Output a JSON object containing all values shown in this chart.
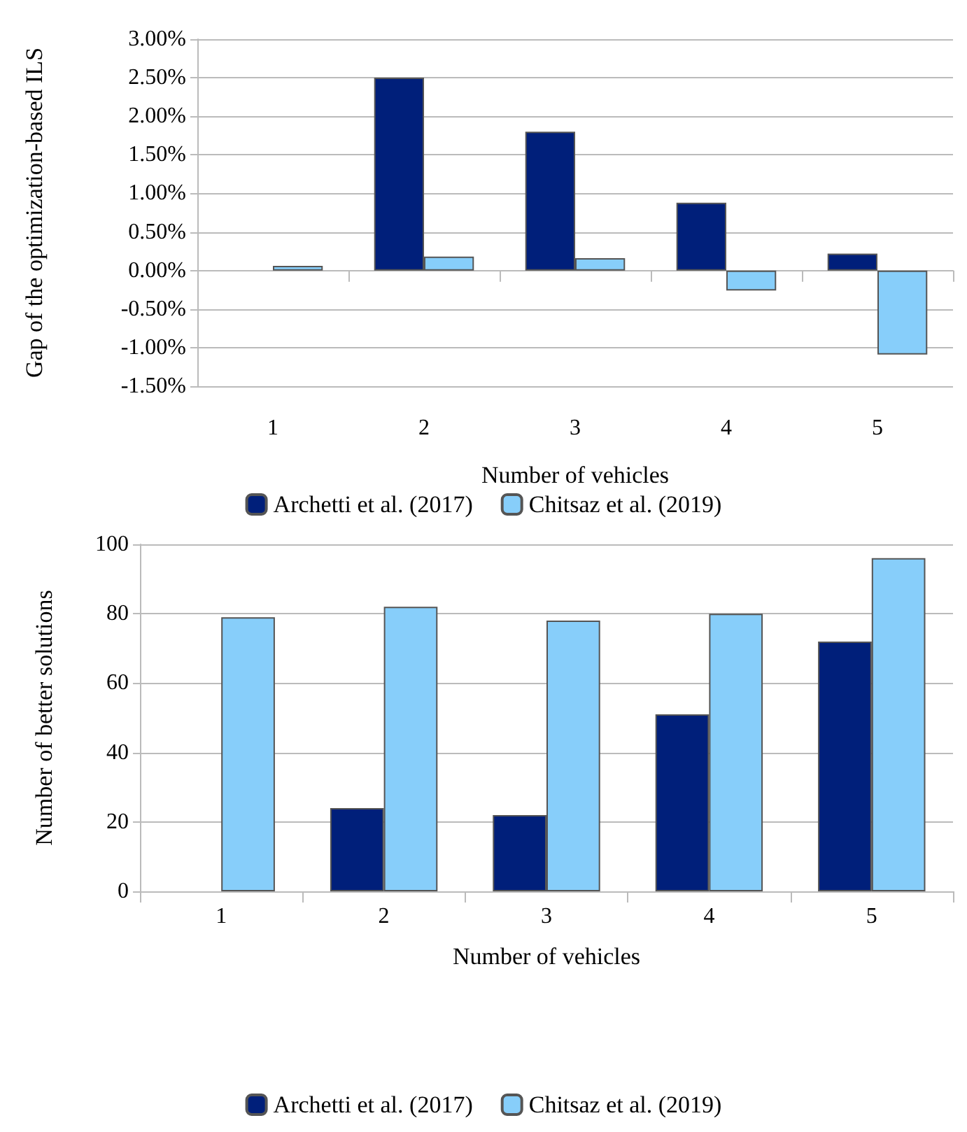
{
  "chart_data": [
    {
      "type": "bar",
      "xlabel": "Number of vehicles",
      "ylabel": "Gap of the optimization-based ILS",
      "categories": [
        "1",
        "2",
        "3",
        "4",
        "5"
      ],
      "series": [
        {
          "name": "Archetti et al. (2017)",
          "color": "#001f7a",
          "values": [
            null,
            2.5,
            1.8,
            0.88,
            0.22
          ]
        },
        {
          "name": "Chitsaz et al. (2019)",
          "color": "#87cefa",
          "values": [
            0.06,
            0.18,
            0.16,
            -0.26,
            -1.09
          ]
        }
      ],
      "ylim": [
        -1.5,
        3
      ],
      "yticks": [
        {
          "value": -1.5,
          "label": "-1.50%"
        },
        {
          "value": -1,
          "label": "-1.00%"
        },
        {
          "value": -0.5,
          "label": "-0.50%"
        },
        {
          "value": 0,
          "label": "0.00%"
        },
        {
          "value": 0.5,
          "label": "0.50%"
        },
        {
          "value": 1,
          "label": "1.00%"
        },
        {
          "value": 1.5,
          "label": "1.50%"
        },
        {
          "value": 2,
          "label": "2.00%"
        },
        {
          "value": 2.5,
          "label": "2.50%"
        },
        {
          "value": 3,
          "label": "3.00%"
        }
      ],
      "grid": "y",
      "legend": "bottom"
    },
    {
      "type": "bar",
      "xlabel": "Number of vehicles",
      "ylabel": "Number of better solutions",
      "categories": [
        "1",
        "2",
        "3",
        "4",
        "5"
      ],
      "series": [
        {
          "name": "Archetti et al. (2017)",
          "color": "#001f7a",
          "values": [
            null,
            24,
            22,
            51,
            72
          ]
        },
        {
          "name": "Chitsaz et al. (2019)",
          "color": "#87cefa",
          "values": [
            79,
            82,
            78,
            80,
            96
          ]
        }
      ],
      "ylim": [
        0,
        100
      ],
      "yticks": [
        0,
        20,
        40,
        60,
        80,
        100
      ],
      "grid": "y",
      "legend": "bottom"
    }
  ]
}
